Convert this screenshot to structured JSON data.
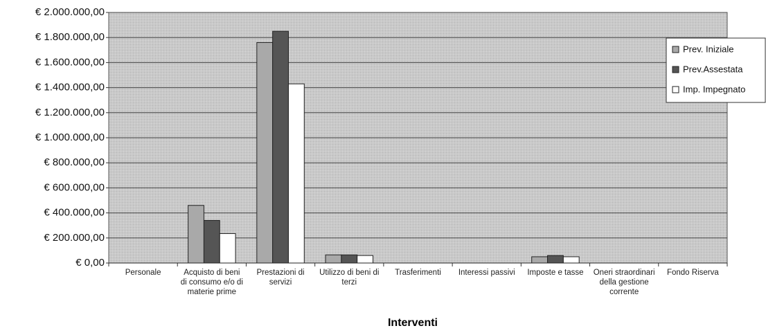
{
  "chart_data": {
    "type": "bar",
    "x_label": "Interventi",
    "categories": [
      "Personale",
      "Acquisto di beni di consumo e/o di materie prime",
      "Prestazioni di servizi",
      "Utilizzo di beni di terzi",
      "Trasferimenti",
      "Interessi passivi",
      "Imposte e tasse",
      "Oneri straordinari della gestione corrente",
      "Fondo Riserva"
    ],
    "series": [
      {
        "name": "Prev. Iniziale",
        "color": "#a9a9a9",
        "values": [
          0,
          460000,
          1760000,
          65000,
          0,
          0,
          50000,
          0,
          0
        ]
      },
      {
        "name": "Prev.Assestata",
        "color": "#555555",
        "values": [
          0,
          340000,
          1850000,
          65000,
          0,
          0,
          60000,
          0,
          0
        ]
      },
      {
        "name": "Imp. Impegnato",
        "color": "#ffffff",
        "values": [
          0,
          235000,
          1430000,
          60000,
          0,
          0,
          50000,
          0,
          0
        ]
      }
    ],
    "ylim": [
      0,
      2000000
    ],
    "yticks": [
      {
        "value": 0,
        "label": "€ 0,00"
      },
      {
        "value": 200000,
        "label": "€ 200.000,00"
      },
      {
        "value": 400000,
        "label": "€ 400.000,00"
      },
      {
        "value": 600000,
        "label": "€ 600.000,00"
      },
      {
        "value": 800000,
        "label": "€ 800.000,00"
      },
      {
        "value": 1000000,
        "label": "€ 1.000.000,00"
      },
      {
        "value": 1200000,
        "label": "€ 1.200.000,00"
      },
      {
        "value": 1400000,
        "label": "€ 1.400.000,00"
      },
      {
        "value": 1600000,
        "label": "€ 1.600.000,00"
      },
      {
        "value": 1800000,
        "label": "€ 1.800.000,00"
      },
      {
        "value": 2000000,
        "label": "€ 2.000.000,00"
      }
    ],
    "grid": true,
    "legend": "right"
  }
}
